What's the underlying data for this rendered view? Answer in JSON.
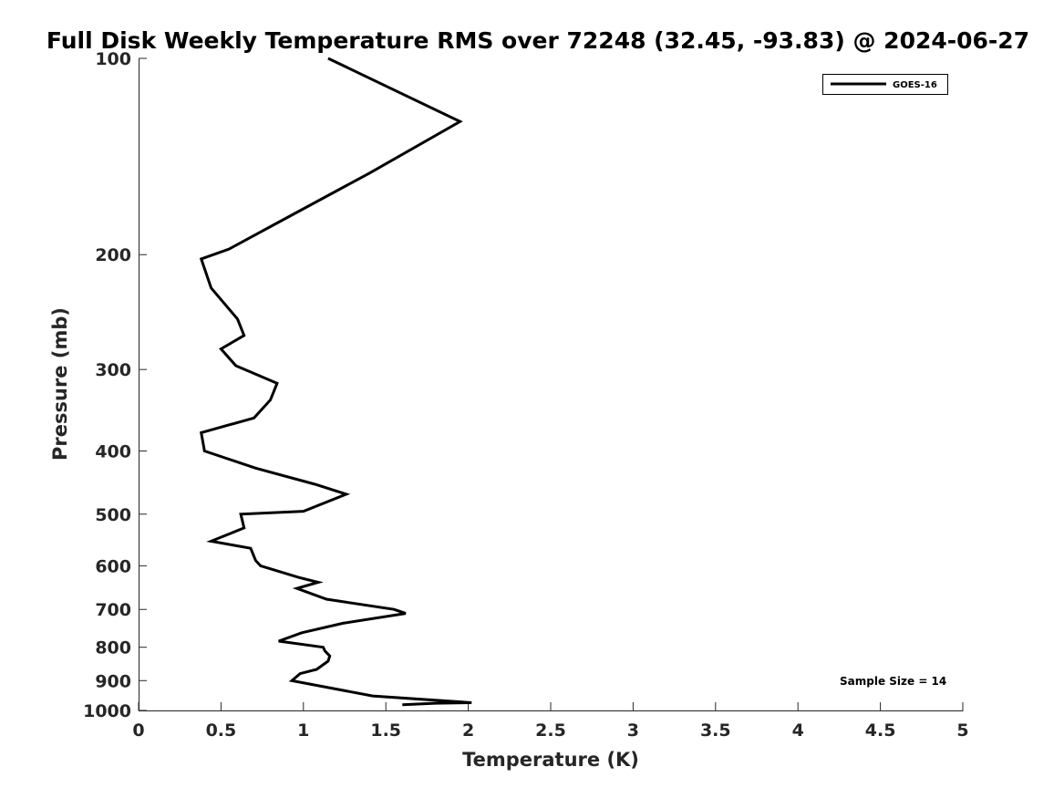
{
  "chart_data": {
    "type": "line",
    "title": "Full Disk Weekly Temperature RMS over 72248 (32.45, -93.83) @ 2024-06-27",
    "xlabel": "Temperature (K)",
    "ylabel": "Pressure (mb)",
    "xlim": [
      0,
      5
    ],
    "ylim": [
      100,
      1000
    ],
    "y_scale": "log",
    "y_reversed": true,
    "x_ticks": [
      0,
      0.5,
      1,
      1.5,
      2,
      2.5,
      3,
      3.5,
      4,
      4.5,
      5
    ],
    "x_tick_labels": [
      "0",
      "0.5",
      "1",
      "1.5",
      "2",
      "2.5",
      "3",
      "3.5",
      "4",
      "4.5",
      "5"
    ],
    "y_ticks": [
      100,
      200,
      300,
      400,
      500,
      600,
      700,
      800,
      900,
      1000
    ],
    "y_tick_labels": [
      "100",
      "200",
      "300",
      "400",
      "500",
      "600",
      "700",
      "800",
      "900",
      "1000"
    ],
    "grid": false,
    "legend_position": "top-right",
    "series": [
      {
        "name": "GOES-16",
        "color": "#000000",
        "points": [
          [
            1.15,
            100
          ],
          [
            1.95,
            125
          ],
          [
            1.4,
            150
          ],
          [
            0.82,
            180
          ],
          [
            0.55,
            196
          ],
          [
            0.38,
            203
          ],
          [
            0.44,
            225
          ],
          [
            0.6,
            251
          ],
          [
            0.64,
            266
          ],
          [
            0.5,
            279
          ],
          [
            0.59,
            296
          ],
          [
            0.84,
            315
          ],
          [
            0.8,
            334
          ],
          [
            0.7,
            356
          ],
          [
            0.38,
            375
          ],
          [
            0.4,
            400
          ],
          [
            0.71,
            425
          ],
          [
            1.07,
            450
          ],
          [
            1.26,
            466
          ],
          [
            1.0,
            495
          ],
          [
            0.62,
            500
          ],
          [
            0.64,
            525
          ],
          [
            0.44,
            550
          ],
          [
            0.68,
            564
          ],
          [
            0.71,
            589
          ],
          [
            0.74,
            600
          ],
          [
            0.97,
            625
          ],
          [
            1.09,
            636
          ],
          [
            0.96,
            650
          ],
          [
            1.14,
            675
          ],
          [
            1.55,
            700
          ],
          [
            1.62,
            710
          ],
          [
            1.24,
            735
          ],
          [
            0.99,
            760
          ],
          [
            0.85,
            783
          ],
          [
            1.12,
            800
          ],
          [
            1.13,
            810
          ],
          [
            1.16,
            825
          ],
          [
            1.15,
            840
          ],
          [
            1.08,
            865
          ],
          [
            0.98,
            878
          ],
          [
            0.93,
            900
          ],
          [
            1.42,
            950
          ],
          [
            2.02,
            973
          ],
          [
            1.8,
            975
          ],
          [
            1.6,
            980
          ]
        ]
      }
    ],
    "annotations": [
      "Sample Size = 14"
    ]
  }
}
